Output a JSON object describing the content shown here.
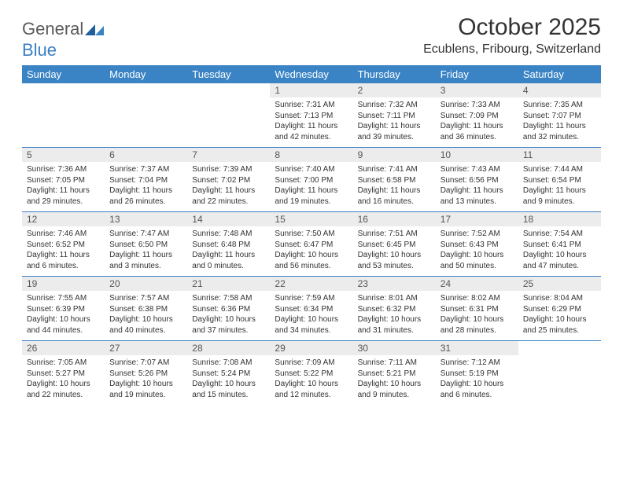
{
  "brand": {
    "word1": "General",
    "word2": "Blue"
  },
  "title": "October 2025",
  "location": "Ecublens, Fribourg, Switzerland",
  "colors": {
    "header_bg": "#3a84c5",
    "header_text": "#ffffff",
    "daynum_bg": "#ececec",
    "border": "#3a7fc4",
    "logo_gray": "#5a5a5a",
    "logo_blue": "#3a7fc4"
  },
  "day_headers": [
    "Sunday",
    "Monday",
    "Tuesday",
    "Wednesday",
    "Thursday",
    "Friday",
    "Saturday"
  ],
  "weeks": [
    [
      {
        "n": "",
        "empty": true
      },
      {
        "n": "",
        "empty": true
      },
      {
        "n": "",
        "empty": true
      },
      {
        "n": "1",
        "sunrise": "7:31 AM",
        "sunset": "7:13 PM",
        "daylight": "11 hours and 42 minutes."
      },
      {
        "n": "2",
        "sunrise": "7:32 AM",
        "sunset": "7:11 PM",
        "daylight": "11 hours and 39 minutes."
      },
      {
        "n": "3",
        "sunrise": "7:33 AM",
        "sunset": "7:09 PM",
        "daylight": "11 hours and 36 minutes."
      },
      {
        "n": "4",
        "sunrise": "7:35 AM",
        "sunset": "7:07 PM",
        "daylight": "11 hours and 32 minutes."
      }
    ],
    [
      {
        "n": "5",
        "sunrise": "7:36 AM",
        "sunset": "7:05 PM",
        "daylight": "11 hours and 29 minutes."
      },
      {
        "n": "6",
        "sunrise": "7:37 AM",
        "sunset": "7:04 PM",
        "daylight": "11 hours and 26 minutes."
      },
      {
        "n": "7",
        "sunrise": "7:39 AM",
        "sunset": "7:02 PM",
        "daylight": "11 hours and 22 minutes."
      },
      {
        "n": "8",
        "sunrise": "7:40 AM",
        "sunset": "7:00 PM",
        "daylight": "11 hours and 19 minutes."
      },
      {
        "n": "9",
        "sunrise": "7:41 AM",
        "sunset": "6:58 PM",
        "daylight": "11 hours and 16 minutes."
      },
      {
        "n": "10",
        "sunrise": "7:43 AM",
        "sunset": "6:56 PM",
        "daylight": "11 hours and 13 minutes."
      },
      {
        "n": "11",
        "sunrise": "7:44 AM",
        "sunset": "6:54 PM",
        "daylight": "11 hours and 9 minutes."
      }
    ],
    [
      {
        "n": "12",
        "sunrise": "7:46 AM",
        "sunset": "6:52 PM",
        "daylight": "11 hours and 6 minutes."
      },
      {
        "n": "13",
        "sunrise": "7:47 AM",
        "sunset": "6:50 PM",
        "daylight": "11 hours and 3 minutes."
      },
      {
        "n": "14",
        "sunrise": "7:48 AM",
        "sunset": "6:48 PM",
        "daylight": "11 hours and 0 minutes."
      },
      {
        "n": "15",
        "sunrise": "7:50 AM",
        "sunset": "6:47 PM",
        "daylight": "10 hours and 56 minutes."
      },
      {
        "n": "16",
        "sunrise": "7:51 AM",
        "sunset": "6:45 PM",
        "daylight": "10 hours and 53 minutes."
      },
      {
        "n": "17",
        "sunrise": "7:52 AM",
        "sunset": "6:43 PM",
        "daylight": "10 hours and 50 minutes."
      },
      {
        "n": "18",
        "sunrise": "7:54 AM",
        "sunset": "6:41 PM",
        "daylight": "10 hours and 47 minutes."
      }
    ],
    [
      {
        "n": "19",
        "sunrise": "7:55 AM",
        "sunset": "6:39 PM",
        "daylight": "10 hours and 44 minutes."
      },
      {
        "n": "20",
        "sunrise": "7:57 AM",
        "sunset": "6:38 PM",
        "daylight": "10 hours and 40 minutes."
      },
      {
        "n": "21",
        "sunrise": "7:58 AM",
        "sunset": "6:36 PM",
        "daylight": "10 hours and 37 minutes."
      },
      {
        "n": "22",
        "sunrise": "7:59 AM",
        "sunset": "6:34 PM",
        "daylight": "10 hours and 34 minutes."
      },
      {
        "n": "23",
        "sunrise": "8:01 AM",
        "sunset": "6:32 PM",
        "daylight": "10 hours and 31 minutes."
      },
      {
        "n": "24",
        "sunrise": "8:02 AM",
        "sunset": "6:31 PM",
        "daylight": "10 hours and 28 minutes."
      },
      {
        "n": "25",
        "sunrise": "8:04 AM",
        "sunset": "6:29 PM",
        "daylight": "10 hours and 25 minutes."
      }
    ],
    [
      {
        "n": "26",
        "sunrise": "7:05 AM",
        "sunset": "5:27 PM",
        "daylight": "10 hours and 22 minutes."
      },
      {
        "n": "27",
        "sunrise": "7:07 AM",
        "sunset": "5:26 PM",
        "daylight": "10 hours and 19 minutes."
      },
      {
        "n": "28",
        "sunrise": "7:08 AM",
        "sunset": "5:24 PM",
        "daylight": "10 hours and 15 minutes."
      },
      {
        "n": "29",
        "sunrise": "7:09 AM",
        "sunset": "5:22 PM",
        "daylight": "10 hours and 12 minutes."
      },
      {
        "n": "30",
        "sunrise": "7:11 AM",
        "sunset": "5:21 PM",
        "daylight": "10 hours and 9 minutes."
      },
      {
        "n": "31",
        "sunrise": "7:12 AM",
        "sunset": "5:19 PM",
        "daylight": "10 hours and 6 minutes."
      },
      {
        "n": "",
        "empty": true
      }
    ]
  ],
  "labels": {
    "sunrise": "Sunrise: ",
    "sunset": "Sunset: ",
    "daylight": "Daylight: "
  }
}
